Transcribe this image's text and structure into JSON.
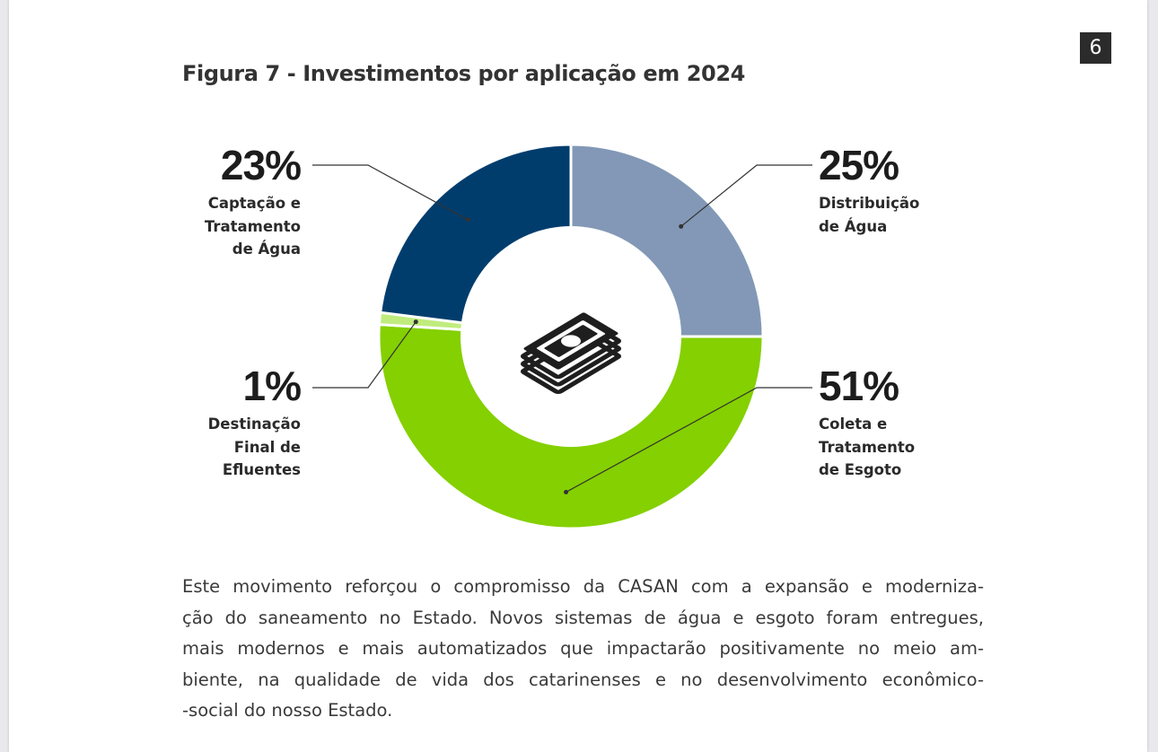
{
  "page": {
    "number": "6"
  },
  "figure": {
    "title": "Figura 7 - Investimentos por aplicação em 2024"
  },
  "chart_data": {
    "type": "pie",
    "style": "donut",
    "center_icon": "money-stack-icon",
    "slices": [
      {
        "category": "Distribuição\nde Água",
        "value": 25,
        "label": "25%",
        "color": "#8298b6"
      },
      {
        "category": "Coleta e\nTratamento\nde Esgoto",
        "value": 51,
        "label": "51%",
        "color": "#84d000"
      },
      {
        "category": "Destinação\nFinal de\nEfluentes",
        "value": 1,
        "label": "1%",
        "color": "#c0ec7e"
      },
      {
        "category": "Captação e\nTratamento\nde Água",
        "value": 23,
        "label": "23%",
        "color": "#003d6d"
      }
    ]
  },
  "body": {
    "lines": [
      "Este movimento reforçou o compromisso da CASAN com a expansão e moderniza-",
      "ção do saneamento no Estado. Novos sistemas de água e esgoto foram entregues,",
      "mais modernos e mais automatizados que impactarão positivamente no meio am-",
      "biente, na qualidade de vida dos catarinenses e no desenvolvimento econômico-",
      "-social do nosso Estado."
    ]
  }
}
